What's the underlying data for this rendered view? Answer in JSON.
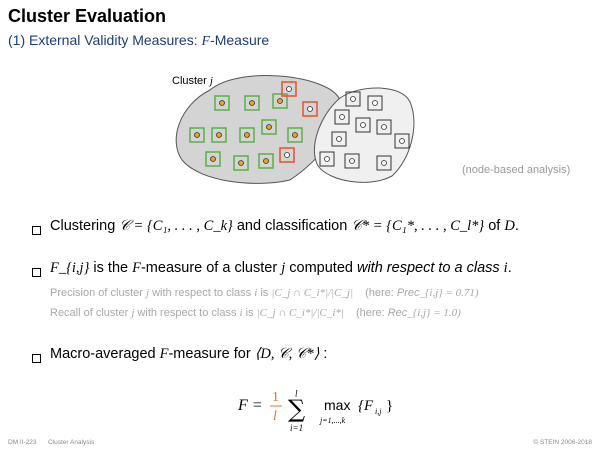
{
  "title": "Cluster Evaluation",
  "subtitle": "(1) External Validity Measures: ",
  "subtitle_var": "F",
  "subtitle_tail": "-Measure",
  "diagram": {
    "cluster_label": "Cluster ",
    "cluster_var": "j"
  },
  "note": "(node-based analysis)",
  "bullets": {
    "b1": {
      "t1": "Clustering ",
      "m1": "𝒞 = {C₁, . . . , C_k}",
      "t2": " and classification ",
      "m2": "𝒞* = {C₁*, . . . , C_l*}",
      "t3": " of ",
      "m3": "D",
      "t4": "."
    },
    "b2": {
      "m1": "F_{i,j}",
      "t1": " is the ",
      "m2": "F",
      "t2": "-measure of a cluster ",
      "m3": "j",
      "t3": " computed ",
      "em": "with respect to a class ",
      "m4": "i",
      "t4": "."
    },
    "prec": {
      "t1": "Precision of cluster ",
      "m1": "j",
      "t2": " with respect to class ",
      "m2": "i",
      "t3": " is ",
      "m3": "|C_j ∩ C_i*|/|C_j|",
      "t4": "(here: ",
      "it": "Prec",
      "m4": "_{i,j} = 0.71)"
    },
    "rec": {
      "t1": "Recall of cluster ",
      "m1": "j",
      "t2": " with respect to class ",
      "m2": "i",
      "t3": " is ",
      "m3": "|C_j ∩ C_i*|/|C_i*|",
      "t4": "(here: ",
      "it": "Rec",
      "m4": "_{i,j} = 1.0)"
    },
    "b3": {
      "t1": "Macro-averaged ",
      "m1": "F",
      "t2": "-measure for ",
      "m2": "⟨D, 𝒞, 𝒞*⟩",
      "t3": " :"
    }
  },
  "formula": {
    "lhs": "F =",
    "num": "1",
    "den": "l",
    "sum_top": "l",
    "sum_sym": "∑",
    "sum_bot": "i=1",
    "max": "max",
    "max_sub": "j=1,...,k",
    "rhs": "{F",
    "rhs_sub": "i,j",
    "rhs_close": "}"
  },
  "footer": {
    "left": "DM II-223",
    "middle": "Cluster Analysis",
    "right": "© STEIN 2006-2018"
  },
  "colors": {
    "accent_blue": "#1f3a7a",
    "green": "#5bb04a",
    "red": "#e2542b",
    "node_fill": "#e6a526",
    "blob": "#d4d4d4"
  }
}
